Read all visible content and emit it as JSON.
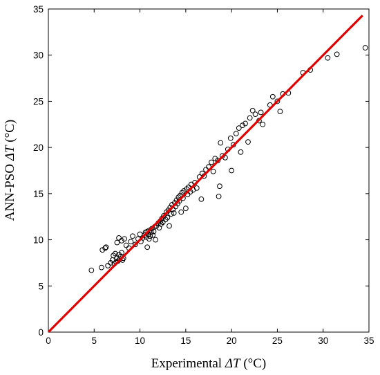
{
  "chart_data": {
    "type": "scatter",
    "title": "",
    "xlabel": {
      "prefix": "Experimental ",
      "symbol": "ΔT",
      "suffix": " (°C)"
    },
    "ylabel": {
      "prefix": "ANN-PSO ",
      "symbol": "ΔT",
      "suffix": " (°C)"
    },
    "xlim": [
      0,
      35
    ],
    "ylim": [
      0,
      35
    ],
    "xticks": [
      "0",
      "5",
      "10",
      "15",
      "20",
      "25",
      "30",
      "35"
    ],
    "yticks": [
      "0",
      "5",
      "10",
      "15",
      "20",
      "25",
      "30",
      "35"
    ],
    "grid": false,
    "marker": "open-circle",
    "marker_color": "#000000",
    "line_color": "#e00000",
    "reference_line": {
      "x": [
        0,
        34.3
      ],
      "y": [
        0,
        34.3
      ]
    },
    "points": [
      [
        4.7,
        6.7
      ],
      [
        5.8,
        7.0
      ],
      [
        5.9,
        8.9
      ],
      [
        6.2,
        9.1
      ],
      [
        6.3,
        9.2
      ],
      [
        6.5,
        7.2
      ],
      [
        6.8,
        7.5
      ],
      [
        7.0,
        7.8
      ],
      [
        7.1,
        8.3
      ],
      [
        7.3,
        8.5
      ],
      [
        7.2,
        7.4
      ],
      [
        7.4,
        7.6
      ],
      [
        7.5,
        8.0
      ],
      [
        7.6,
        7.7
      ],
      [
        7.7,
        8.4
      ],
      [
        7.8,
        7.9
      ],
      [
        7.9,
        8.2
      ],
      [
        8.0,
        8.6
      ],
      [
        8.1,
        7.8
      ],
      [
        8.2,
        8.0
      ],
      [
        7.5,
        9.7
      ],
      [
        7.7,
        10.2
      ],
      [
        8.0,
        9.9
      ],
      [
        8.3,
        10.1
      ],
      [
        8.5,
        9.4
      ],
      [
        8.8,
        9.1
      ],
      [
        9.0,
        9.8
      ],
      [
        9.2,
        10.4
      ],
      [
        9.5,
        9.5
      ],
      [
        9.8,
        10.1
      ],
      [
        10.0,
        10.6
      ],
      [
        10.1,
        9.8
      ],
      [
        10.3,
        10.2
      ],
      [
        10.5,
        10.5
      ],
      [
        10.6,
        10.8
      ],
      [
        10.7,
        10.3
      ],
      [
        10.8,
        10.9
      ],
      [
        10.9,
        10.6
      ],
      [
        11.0,
        11.0
      ],
      [
        11.1,
        10.4
      ],
      [
        11.2,
        10.8
      ],
      [
        11.3,
        11.2
      ],
      [
        11.4,
        10.5
      ],
      [
        11.5,
        10.9
      ],
      [
        11.0,
        10.1
      ],
      [
        10.8,
        9.2
      ],
      [
        11.6,
        11.4
      ],
      [
        11.7,
        10.0
      ],
      [
        11.8,
        11.5
      ],
      [
        12.0,
        11.8
      ],
      [
        12.1,
        11.3
      ],
      [
        12.2,
        12.0
      ],
      [
        12.3,
        11.7
      ],
      [
        12.4,
        12.3
      ],
      [
        12.5,
        11.9
      ],
      [
        12.6,
        12.6
      ],
      [
        12.8,
        12.2
      ],
      [
        12.9,
        13.0
      ],
      [
        13.0,
        12.4
      ],
      [
        13.1,
        13.2
      ],
      [
        13.2,
        11.5
      ],
      [
        13.3,
        13.5
      ],
      [
        13.4,
        12.8
      ],
      [
        13.5,
        13.8
      ],
      [
        13.6,
        13.3
      ],
      [
        13.7,
        12.9
      ],
      [
        13.8,
        14.0
      ],
      [
        13.9,
        13.6
      ],
      [
        14.0,
        14.3
      ],
      [
        14.1,
        13.9
      ],
      [
        14.2,
        14.6
      ],
      [
        14.3,
        14.2
      ],
      [
        14.4,
        14.8
      ],
      [
        14.5,
        13.0
      ],
      [
        14.6,
        15.1
      ],
      [
        14.7,
        14.5
      ],
      [
        14.8,
        15.3
      ],
      [
        15.0,
        13.4
      ],
      [
        15.1,
        15.5
      ],
      [
        15.2,
        14.9
      ],
      [
        15.3,
        15.7
      ],
      [
        15.5,
        15.2
      ],
      [
        15.6,
        16.0
      ],
      [
        15.8,
        15.4
      ],
      [
        16.0,
        16.2
      ],
      [
        16.2,
        15.6
      ],
      [
        16.5,
        16.8
      ],
      [
        16.7,
        14.4
      ],
      [
        16.8,
        17.2
      ],
      [
        17.0,
        16.9
      ],
      [
        17.2,
        17.6
      ],
      [
        17.5,
        17.9
      ],
      [
        17.8,
        18.4
      ],
      [
        18.0,
        17.4
      ],
      [
        18.2,
        18.8
      ],
      [
        18.5,
        18.6
      ],
      [
        18.6,
        14.7
      ],
      [
        18.7,
        15.8
      ],
      [
        18.8,
        20.5
      ],
      [
        19.0,
        19.1
      ],
      [
        19.3,
        18.9
      ],
      [
        19.6,
        19.8
      ],
      [
        19.9,
        21.0
      ],
      [
        20.0,
        17.5
      ],
      [
        20.2,
        20.3
      ],
      [
        20.5,
        21.5
      ],
      [
        20.8,
        22.1
      ],
      [
        21.0,
        19.5
      ],
      [
        21.2,
        22.4
      ],
      [
        21.5,
        22.6
      ],
      [
        21.8,
        20.6
      ],
      [
        22.0,
        23.2
      ],
      [
        22.3,
        24.0
      ],
      [
        22.6,
        23.6
      ],
      [
        23.0,
        22.9
      ],
      [
        23.2,
        23.8
      ],
      [
        23.4,
        22.5
      ],
      [
        24.2,
        24.6
      ],
      [
        24.5,
        25.5
      ],
      [
        25.0,
        25.0
      ],
      [
        25.3,
        23.9
      ],
      [
        25.6,
        25.8
      ],
      [
        26.2,
        25.9
      ],
      [
        27.8,
        28.1
      ],
      [
        28.6,
        28.4
      ],
      [
        30.5,
        29.7
      ],
      [
        31.5,
        30.1
      ],
      [
        34.6,
        30.8
      ]
    ]
  }
}
